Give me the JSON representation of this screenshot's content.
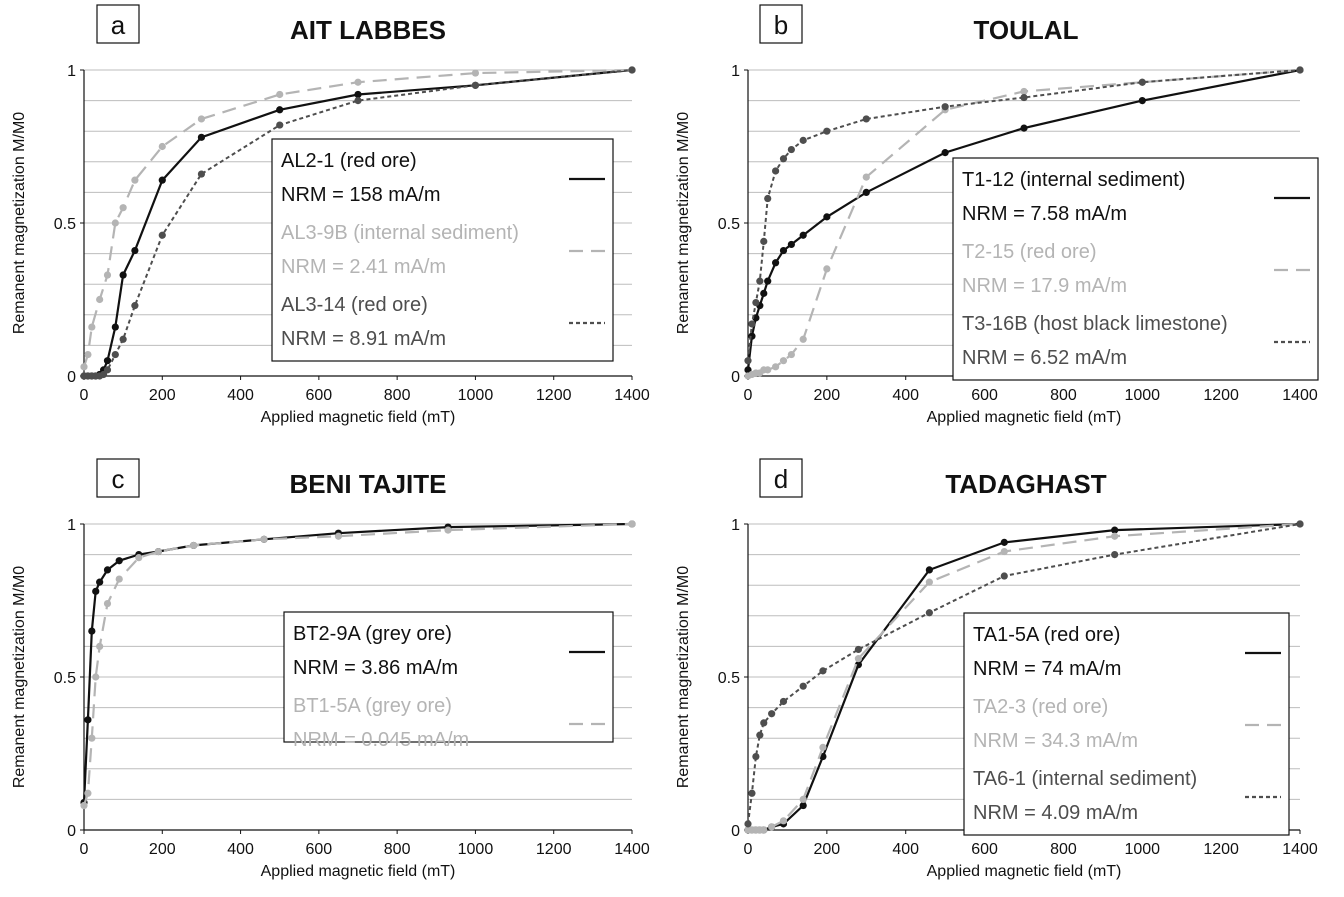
{
  "figure": {
    "xlabel": "Applied magnetic field (mT)",
    "ylabel": "Remanent magnetization M/M0"
  },
  "colors": {
    "black": "#111111",
    "light": "#b4b4b4",
    "dark": "#4e4e4e"
  },
  "chart_data": [
    {
      "type": "line",
      "letter": "a",
      "title": "AIT LABBES",
      "xlabel": "Applied magnetic field (mT)",
      "ylabel": "Remanent magnetization M/M0",
      "xlim": [
        0,
        1400
      ],
      "ylim": [
        0,
        1
      ],
      "xticks": [
        "0",
        "200",
        "400",
        "600",
        "800",
        "1000",
        "1200",
        "1400"
      ],
      "yticks": [
        "0",
        "0.5",
        "1"
      ],
      "grid": true,
      "legend_position": "center-right",
      "series": [
        {
          "name": "AL2-1 (red ore)",
          "nrm": "NRM = 158 mA/m",
          "style": "solid",
          "color": "#111111",
          "x": [
            0,
            10,
            20,
            30,
            40,
            50,
            60,
            80,
            100,
            130,
            200,
            300,
            500,
            700,
            1000,
            1400
          ],
          "y": [
            0,
            0,
            0,
            0,
            0.005,
            0.02,
            0.05,
            0.16,
            0.33,
            0.41,
            0.64,
            0.78,
            0.87,
            0.92,
            0.95,
            1.0
          ]
        },
        {
          "name": "AL3-9B (internal sediment)",
          "nrm": "NRM = 2.41 mA/m",
          "style": "dashed",
          "color": "#b4b4b4",
          "x": [
            0,
            10,
            20,
            40,
            60,
            80,
            100,
            130,
            200,
            300,
            500,
            700,
            1000,
            1400
          ],
          "y": [
            0.03,
            0.07,
            0.16,
            0.25,
            0.33,
            0.5,
            0.55,
            0.64,
            0.75,
            0.84,
            0.92,
            0.96,
            0.99,
            1.0
          ]
        },
        {
          "name": "AL3-14 (red ore)",
          "nrm": "NRM = 8.91 mA/m",
          "style": "dotted",
          "color": "#4e4e4e",
          "x": [
            0,
            10,
            20,
            30,
            40,
            50,
            60,
            80,
            100,
            130,
            200,
            300,
            500,
            700,
            1000,
            1400
          ],
          "y": [
            0,
            0,
            0,
            0,
            0,
            0.005,
            0.02,
            0.07,
            0.12,
            0.23,
            0.46,
            0.66,
            0.82,
            0.9,
            0.95,
            1.0
          ]
        }
      ]
    },
    {
      "type": "line",
      "letter": "b",
      "title": "TOULAL",
      "xlabel": "Applied magnetic field (mT)",
      "ylabel": "Remanent magnetization M/M0",
      "xlim": [
        0,
        1400
      ],
      "ylim": [
        0,
        1
      ],
      "xticks": [
        "0",
        "200",
        "400",
        "600",
        "800",
        "1000",
        "1200",
        "1400"
      ],
      "yticks": [
        "0",
        "0.5",
        "1"
      ],
      "grid": true,
      "legend_position": "center-right",
      "series": [
        {
          "name": "T1-12 (internal sediment)",
          "nrm": "NRM = 7.58 mA/m",
          "style": "solid",
          "color": "#111111",
          "x": [
            0,
            10,
            20,
            30,
            40,
            50,
            70,
            90,
            110,
            140,
            200,
            300,
            500,
            700,
            1000,
            1400
          ],
          "y": [
            0.02,
            0.13,
            0.19,
            0.23,
            0.27,
            0.31,
            0.37,
            0.41,
            0.43,
            0.46,
            0.52,
            0.6,
            0.73,
            0.81,
            0.9,
            1.0
          ]
        },
        {
          "name": "T2-15 (red ore)",
          "nrm": "NRM = 17.9 mA/m",
          "style": "dashed",
          "color": "#b4b4b4",
          "x": [
            0,
            10,
            20,
            30,
            40,
            50,
            70,
            90,
            110,
            140,
            200,
            300,
            500,
            700,
            1000,
            1400
          ],
          "y": [
            0,
            0.005,
            0.01,
            0.01,
            0.02,
            0.02,
            0.03,
            0.05,
            0.07,
            0.12,
            0.35,
            0.65,
            0.87,
            0.93,
            0.96,
            1.0
          ]
        },
        {
          "name": "T3-16B (host black limestone)",
          "nrm": "NRM = 6.52 mA/m",
          "style": "dotted",
          "color": "#4e4e4e",
          "x": [
            0,
            10,
            20,
            30,
            40,
            50,
            70,
            90,
            110,
            140,
            200,
            300,
            500,
            700,
            1000,
            1400
          ],
          "y": [
            0.05,
            0.17,
            0.24,
            0.31,
            0.44,
            0.58,
            0.67,
            0.71,
            0.74,
            0.77,
            0.8,
            0.84,
            0.88,
            0.91,
            0.96,
            1.0
          ]
        }
      ]
    },
    {
      "type": "line",
      "letter": "c",
      "title": "BENI TAJITE",
      "xlabel": "Applied magnetic field (mT)",
      "ylabel": "Remanent magnetization M/M0",
      "xlim": [
        0,
        1400
      ],
      "ylim": [
        0,
        1
      ],
      "xticks": [
        "0",
        "200",
        "400",
        "600",
        "800",
        "1000",
        "1200",
        "1400"
      ],
      "yticks": [
        "0",
        "0.5",
        "1"
      ],
      "grid": true,
      "legend_position": "center-right",
      "series": [
        {
          "name": "BT2-9A (grey ore)",
          "nrm": "NRM = 3.86 mA/m",
          "style": "solid",
          "color": "#111111",
          "x": [
            0,
            10,
            20,
            30,
            40,
            60,
            90,
            140,
            190,
            280,
            460,
            650,
            930,
            1400
          ],
          "y": [
            0.09,
            0.36,
            0.65,
            0.78,
            0.81,
            0.85,
            0.88,
            0.9,
            0.91,
            0.93,
            0.95,
            0.97,
            0.99,
            1.0
          ]
        },
        {
          "name": "BT1-5A (grey ore)",
          "nrm": "NRM = 0.045 mA/m",
          "style": "dashed",
          "color": "#b4b4b4",
          "x": [
            0,
            10,
            20,
            30,
            40,
            60,
            90,
            140,
            190,
            280,
            460,
            650,
            930,
            1400
          ],
          "y": [
            0.08,
            0.12,
            0.3,
            0.5,
            0.6,
            0.74,
            0.82,
            0.89,
            0.91,
            0.93,
            0.95,
            0.96,
            0.98,
            1.0
          ]
        }
      ]
    },
    {
      "type": "line",
      "letter": "d",
      "title": "TADAGHAST",
      "xlabel": "Applied magnetic field (mT)",
      "ylabel": "Remanent magnetization M/M0",
      "xlim": [
        0,
        1400
      ],
      "ylim": [
        0,
        1
      ],
      "xticks": [
        "0",
        "200",
        "400",
        "600",
        "800",
        "1000",
        "1200",
        "1400"
      ],
      "yticks": [
        "0",
        "0.5",
        "1"
      ],
      "grid": true,
      "legend_position": "center-right",
      "series": [
        {
          "name": "TA1-5A (red ore)",
          "nrm": "NRM = 74 mA/m",
          "style": "solid",
          "color": "#111111",
          "x": [
            0,
            10,
            20,
            30,
            40,
            60,
            90,
            140,
            190,
            280,
            460,
            650,
            930,
            1400
          ],
          "y": [
            0,
            0,
            0,
            0,
            0,
            0.01,
            0.02,
            0.08,
            0.24,
            0.54,
            0.85,
            0.94,
            0.98,
            1.0
          ]
        },
        {
          "name": "TA2-3 (red ore)",
          "nrm": "NRM = 34.3 mA/m",
          "style": "dashed",
          "color": "#b4b4b4",
          "x": [
            0,
            10,
            20,
            30,
            40,
            60,
            90,
            140,
            190,
            280,
            460,
            650,
            930,
            1400
          ],
          "y": [
            0,
            0,
            0,
            0,
            0,
            0.01,
            0.03,
            0.1,
            0.27,
            0.56,
            0.81,
            0.91,
            0.96,
            1.0
          ]
        },
        {
          "name": "TA6-1 (internal sediment)",
          "nrm": "NRM = 4.09 mA/m",
          "style": "dotted",
          "color": "#4e4e4e",
          "x": [
            0,
            10,
            20,
            30,
            40,
            60,
            90,
            140,
            190,
            280,
            460,
            650,
            930,
            1400
          ],
          "y": [
            0.02,
            0.12,
            0.24,
            0.31,
            0.35,
            0.38,
            0.42,
            0.47,
            0.52,
            0.59,
            0.71,
            0.83,
            0.9,
            1.0
          ]
        }
      ]
    }
  ]
}
